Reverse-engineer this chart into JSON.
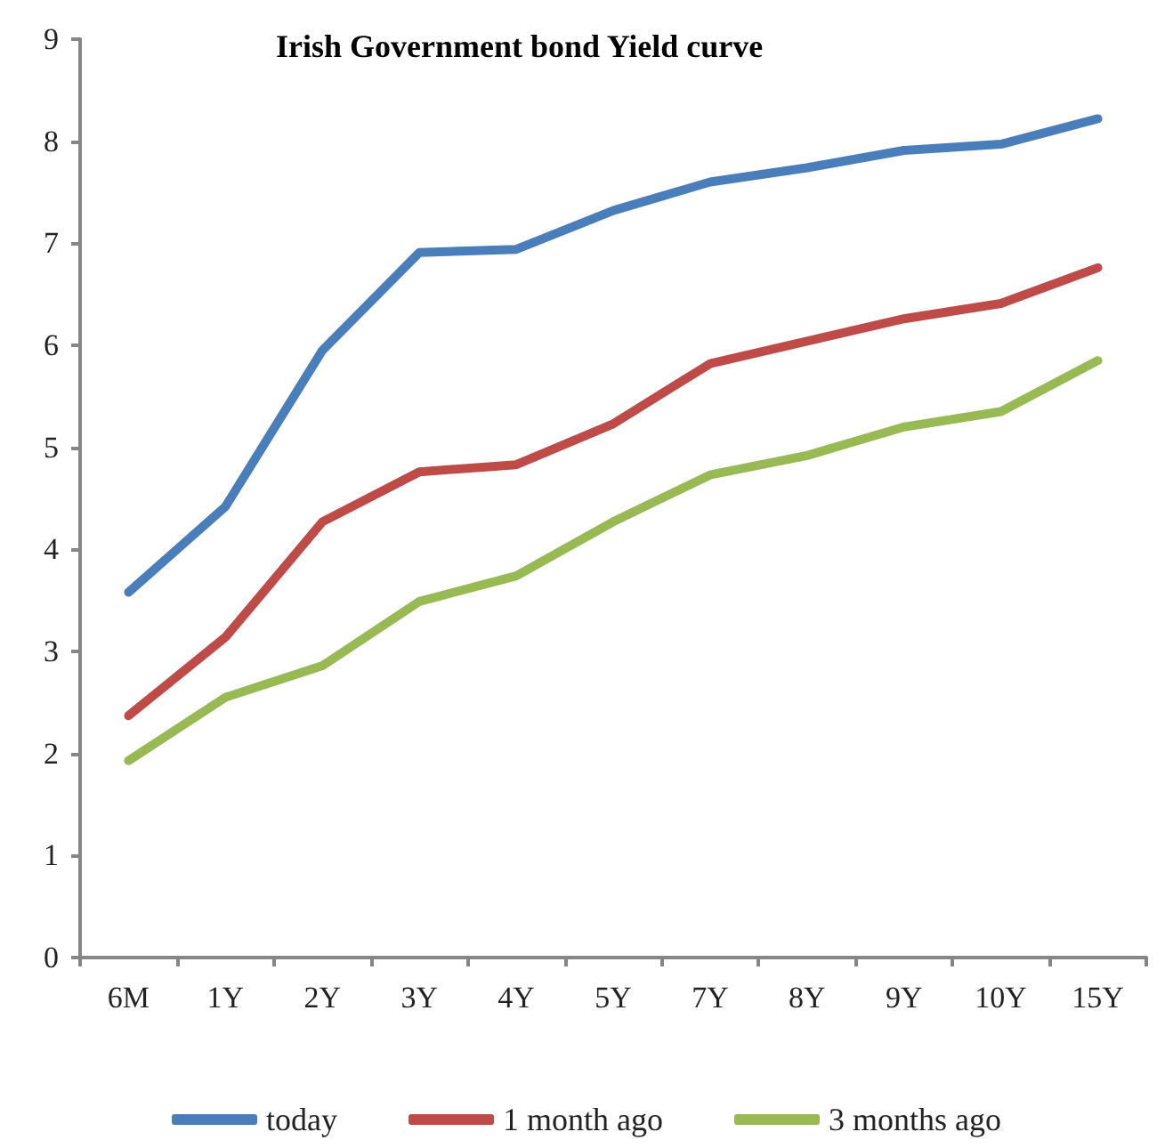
{
  "chart_data": {
    "type": "line",
    "title": "Irish Government bond Yield curve",
    "categories": [
      "6M",
      "1Y",
      "2Y",
      "3Y",
      "4Y",
      "5Y",
      "7Y",
      "8Y",
      "9Y",
      "10Y",
      "15Y"
    ],
    "series": [
      {
        "name": "today",
        "color": "#4a7ebb",
        "values": [
          3.58,
          4.42,
          5.95,
          6.91,
          6.94,
          7.32,
          7.6,
          7.74,
          7.91,
          7.97,
          8.22
        ]
      },
      {
        "name": "1 month ago",
        "color": "#be4b48",
        "values": [
          2.37,
          3.14,
          4.27,
          4.76,
          4.83,
          5.23,
          5.82,
          6.04,
          6.26,
          6.41,
          6.76
        ]
      },
      {
        "name": "3 months ago",
        "color": "#98b954",
        "values": [
          1.93,
          2.55,
          2.86,
          3.49,
          3.74,
          4.27,
          4.73,
          4.92,
          5.2,
          5.35,
          5.85
        ]
      }
    ],
    "ylim": [
      0,
      9
    ],
    "yticks": [
      0,
      1,
      2,
      3,
      4,
      5,
      6,
      7,
      8,
      9
    ],
    "grid": false,
    "legend": "bottom",
    "marker": "none",
    "line_style": "solid"
  }
}
